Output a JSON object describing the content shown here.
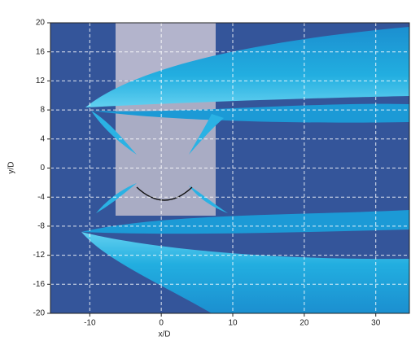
{
  "chart_data": {
    "type": "flow",
    "xlabel": "x/D",
    "ylabel": "y/D",
    "xlim": [
      -15.5,
      34.7
    ],
    "ylim": [
      -20,
      20
    ],
    "xticks": [
      -10,
      0,
      10,
      20,
      30
    ],
    "yticks": [
      -20,
      -16,
      -12,
      -8,
      -4,
      0,
      4,
      8,
      12,
      16,
      20
    ],
    "grid": true,
    "background": "#34559a"
  }
}
